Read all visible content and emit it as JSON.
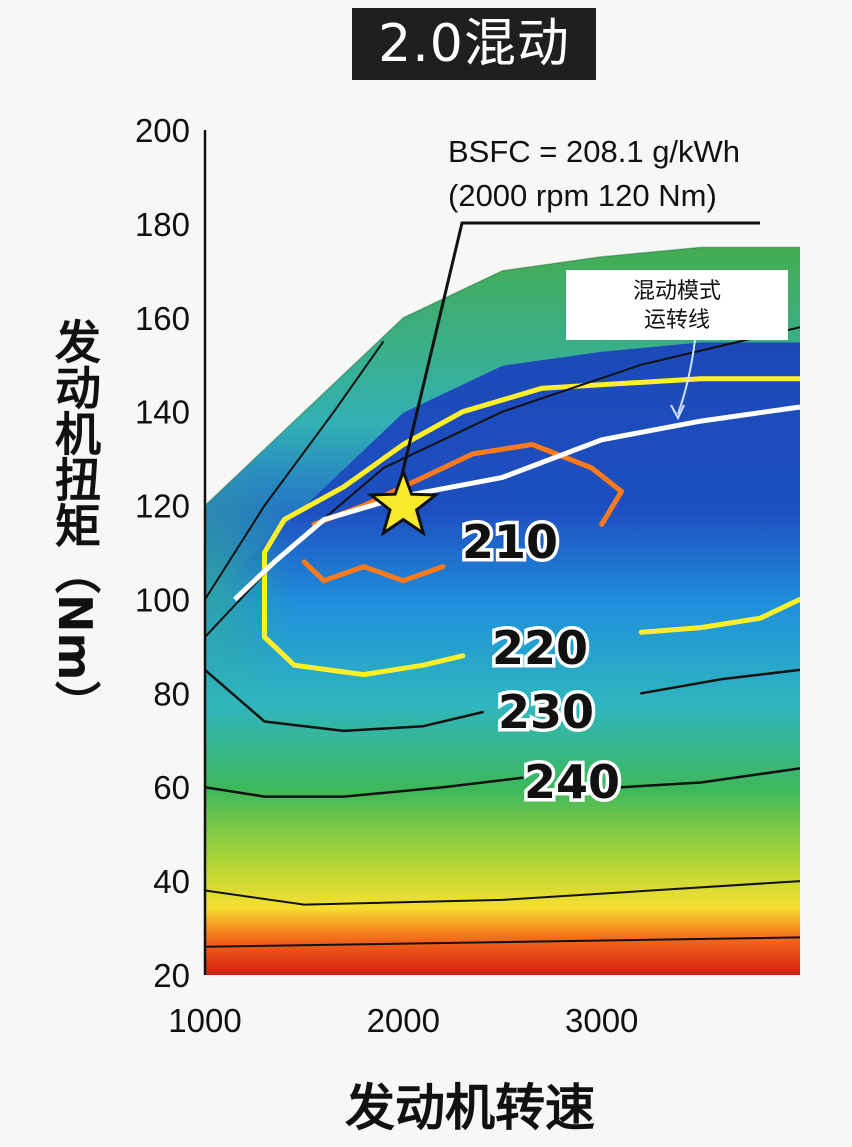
{
  "header": {
    "title": "2.0混动"
  },
  "chart_data": {
    "type": "contour",
    "title": "2.0混动",
    "xlabel": "发动机转速",
    "ylabel": "发动机扭矩（Nm）",
    "xlim": [
      1000,
      4000
    ],
    "ylim": [
      20,
      200
    ],
    "x_ticks": [
      1000,
      2000,
      3000
    ],
    "y_ticks": [
      20,
      40,
      60,
      80,
      100,
      120,
      140,
      160,
      180,
      200
    ],
    "max_torque_curve": [
      [
        1000,
        120
      ],
      [
        1500,
        140
      ],
      [
        2000,
        160
      ],
      [
        2500,
        170
      ],
      [
        3000,
        173
      ],
      [
        3500,
        175
      ],
      [
        4000,
        175
      ]
    ],
    "bsfc_contours": [
      {
        "label": "210",
        "unit": "g/kWh",
        "color": "#ff7a1a",
        "points": [
          [
            1550,
            116
          ],
          [
            1800,
            120
          ],
          [
            2100,
            126
          ],
          [
            2350,
            131
          ],
          [
            2650,
            133
          ],
          [
            2950,
            128
          ],
          [
            3100,
            123
          ],
          [
            3000,
            116
          ]
        ]
      },
      {
        "label": "210",
        "unit": "g/kWh",
        "color": "#ff7a1a",
        "points": [
          [
            1500,
            108
          ],
          [
            1600,
            104
          ],
          [
            1800,
            107
          ],
          [
            2000,
            104
          ],
          [
            2200,
            107
          ]
        ]
      },
      {
        "label": "220",
        "unit": "g/kWh",
        "color": "#ffef2a",
        "points": [
          [
            2300,
            88
          ],
          [
            2100,
            86
          ],
          [
            1800,
            84
          ],
          [
            1450,
            86
          ],
          [
            1300,
            92
          ],
          [
            1300,
            110
          ],
          [
            1400,
            117
          ],
          [
            1700,
            124
          ],
          [
            2000,
            133
          ],
          [
            2300,
            140
          ],
          [
            2700,
            145
          ],
          [
            3500,
            147
          ],
          [
            4000,
            147
          ]
        ]
      },
      {
        "label": "220",
        "unit": "g/kWh",
        "color": "#ffef2a",
        "points": [
          [
            3200,
            93
          ],
          [
            3500,
            94
          ],
          [
            3800,
            96
          ],
          [
            4000,
            100
          ]
        ]
      },
      {
        "label": "230",
        "unit": "g/kWh",
        "color": "#111111",
        "points": [
          [
            1000,
            85
          ],
          [
            1300,
            74
          ],
          [
            1700,
            72
          ],
          [
            2100,
            73
          ],
          [
            2400,
            76
          ]
        ]
      },
      {
        "label": "230",
        "unit": "g/kWh",
        "color": "#111111",
        "points": [
          [
            3200,
            80
          ],
          [
            3600,
            83
          ],
          [
            4000,
            85
          ]
        ]
      },
      {
        "label": "240",
        "unit": "g/kWh",
        "color": "#111111",
        "points": [
          [
            1000,
            60
          ],
          [
            1300,
            58
          ],
          [
            1700,
            58
          ],
          [
            2200,
            60
          ],
          [
            2600,
            62
          ]
        ]
      },
      {
        "label": "240",
        "unit": "g/kWh",
        "color": "#111111",
        "points": [
          [
            3100,
            60
          ],
          [
            3500,
            61
          ],
          [
            4000,
            64
          ]
        ]
      }
    ],
    "hybrid_operating_line": {
      "label": "混动模式运转线",
      "color": "#ffffff",
      "points": [
        [
          1150,
          100
        ],
        [
          1350,
          108
        ],
        [
          1600,
          117
        ],
        [
          2000,
          122
        ],
        [
          2500,
          126
        ],
        [
          3000,
          134
        ],
        [
          3500,
          138
        ],
        [
          4000,
          141
        ]
      ]
    },
    "optimum_point": {
      "x": 2000,
      "y": 120,
      "marker": "star",
      "color": "#f7ea2a",
      "annotation_line1": "BSFC = 208.1 g/kWh",
      "annotation_line2": "(2000 rpm 120 Nm)"
    },
    "mode_line_label": {
      "line1": "混动模式",
      "line2": "运转线"
    },
    "contour_labels": [
      "210",
      "220",
      "230",
      "240"
    ]
  }
}
